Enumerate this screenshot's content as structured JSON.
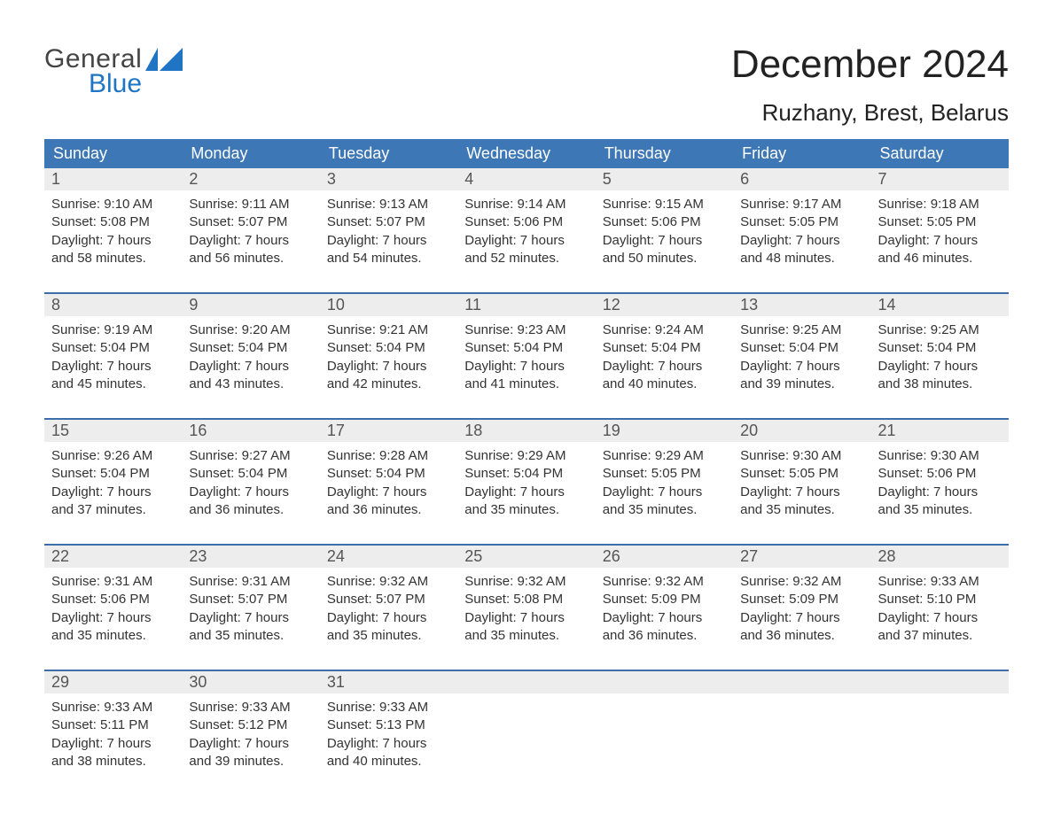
{
  "logo": {
    "line1": "General",
    "line2": "Blue"
  },
  "title": {
    "month": "December 2024",
    "location": "Ruzhany, Brest, Belarus"
  },
  "style": {
    "blue_header": "#3e77b5",
    "logo_blue": "#1f75c4",
    "daynum_gray": "#ededed",
    "text_dark": "#333333",
    "row_divider": "#3b6fa8",
    "background": "#ffffff",
    "font_family": "Arial, Helvetica, sans-serif",
    "title_fontsize_pt": 33,
    "location_fontsize_pt": 20,
    "weekday_fontsize_pt": 14,
    "cell_fontsize_pt": 11
  },
  "weekdays": [
    "Sunday",
    "Monday",
    "Tuesday",
    "Wednesday",
    "Thursday",
    "Friday",
    "Saturday"
  ],
  "labels": {
    "sunrise": "Sunrise:",
    "sunset": "Sunset:",
    "daylight": "Daylight:"
  },
  "weeks": [
    {
      "days": [
        {
          "n": "1",
          "sunrise": "9:10 AM",
          "sunset": "5:08 PM",
          "dl1": "Daylight: 7 hours",
          "dl2": "and 58 minutes."
        },
        {
          "n": "2",
          "sunrise": "9:11 AM",
          "sunset": "5:07 PM",
          "dl1": "Daylight: 7 hours",
          "dl2": "and 56 minutes."
        },
        {
          "n": "3",
          "sunrise": "9:13 AM",
          "sunset": "5:07 PM",
          "dl1": "Daylight: 7 hours",
          "dl2": "and 54 minutes."
        },
        {
          "n": "4",
          "sunrise": "9:14 AM",
          "sunset": "5:06 PM",
          "dl1": "Daylight: 7 hours",
          "dl2": "and 52 minutes."
        },
        {
          "n": "5",
          "sunrise": "9:15 AM",
          "sunset": "5:06 PM",
          "dl1": "Daylight: 7 hours",
          "dl2": "and 50 minutes."
        },
        {
          "n": "6",
          "sunrise": "9:17 AM",
          "sunset": "5:05 PM",
          "dl1": "Daylight: 7 hours",
          "dl2": "and 48 minutes."
        },
        {
          "n": "7",
          "sunrise": "9:18 AM",
          "sunset": "5:05 PM",
          "dl1": "Daylight: 7 hours",
          "dl2": "and 46 minutes."
        }
      ]
    },
    {
      "days": [
        {
          "n": "8",
          "sunrise": "9:19 AM",
          "sunset": "5:04 PM",
          "dl1": "Daylight: 7 hours",
          "dl2": "and 45 minutes."
        },
        {
          "n": "9",
          "sunrise": "9:20 AM",
          "sunset": "5:04 PM",
          "dl1": "Daylight: 7 hours",
          "dl2": "and 43 minutes."
        },
        {
          "n": "10",
          "sunrise": "9:21 AM",
          "sunset": "5:04 PM",
          "dl1": "Daylight: 7 hours",
          "dl2": "and 42 minutes."
        },
        {
          "n": "11",
          "sunrise": "9:23 AM",
          "sunset": "5:04 PM",
          "dl1": "Daylight: 7 hours",
          "dl2": "and 41 minutes."
        },
        {
          "n": "12",
          "sunrise": "9:24 AM",
          "sunset": "5:04 PM",
          "dl1": "Daylight: 7 hours",
          "dl2": "and 40 minutes."
        },
        {
          "n": "13",
          "sunrise": "9:25 AM",
          "sunset": "5:04 PM",
          "dl1": "Daylight: 7 hours",
          "dl2": "and 39 minutes."
        },
        {
          "n": "14",
          "sunrise": "9:25 AM",
          "sunset": "5:04 PM",
          "dl1": "Daylight: 7 hours",
          "dl2": "and 38 minutes."
        }
      ]
    },
    {
      "days": [
        {
          "n": "15",
          "sunrise": "9:26 AM",
          "sunset": "5:04 PM",
          "dl1": "Daylight: 7 hours",
          "dl2": "and 37 minutes."
        },
        {
          "n": "16",
          "sunrise": "9:27 AM",
          "sunset": "5:04 PM",
          "dl1": "Daylight: 7 hours",
          "dl2": "and 36 minutes."
        },
        {
          "n": "17",
          "sunrise": "9:28 AM",
          "sunset": "5:04 PM",
          "dl1": "Daylight: 7 hours",
          "dl2": "and 36 minutes."
        },
        {
          "n": "18",
          "sunrise": "9:29 AM",
          "sunset": "5:04 PM",
          "dl1": "Daylight: 7 hours",
          "dl2": "and 35 minutes."
        },
        {
          "n": "19",
          "sunrise": "9:29 AM",
          "sunset": "5:05 PM",
          "dl1": "Daylight: 7 hours",
          "dl2": "and 35 minutes."
        },
        {
          "n": "20",
          "sunrise": "9:30 AM",
          "sunset": "5:05 PM",
          "dl1": "Daylight: 7 hours",
          "dl2": "and 35 minutes."
        },
        {
          "n": "21",
          "sunrise": "9:30 AM",
          "sunset": "5:06 PM",
          "dl1": "Daylight: 7 hours",
          "dl2": "and 35 minutes."
        }
      ]
    },
    {
      "days": [
        {
          "n": "22",
          "sunrise": "9:31 AM",
          "sunset": "5:06 PM",
          "dl1": "Daylight: 7 hours",
          "dl2": "and 35 minutes."
        },
        {
          "n": "23",
          "sunrise": "9:31 AM",
          "sunset": "5:07 PM",
          "dl1": "Daylight: 7 hours",
          "dl2": "and 35 minutes."
        },
        {
          "n": "24",
          "sunrise": "9:32 AM",
          "sunset": "5:07 PM",
          "dl1": "Daylight: 7 hours",
          "dl2": "and 35 minutes."
        },
        {
          "n": "25",
          "sunrise": "9:32 AM",
          "sunset": "5:08 PM",
          "dl1": "Daylight: 7 hours",
          "dl2": "and 35 minutes."
        },
        {
          "n": "26",
          "sunrise": "9:32 AM",
          "sunset": "5:09 PM",
          "dl1": "Daylight: 7 hours",
          "dl2": "and 36 minutes."
        },
        {
          "n": "27",
          "sunrise": "9:32 AM",
          "sunset": "5:09 PM",
          "dl1": "Daylight: 7 hours",
          "dl2": "and 36 minutes."
        },
        {
          "n": "28",
          "sunrise": "9:33 AM",
          "sunset": "5:10 PM",
          "dl1": "Daylight: 7 hours",
          "dl2": "and 37 minutes."
        }
      ]
    },
    {
      "days": [
        {
          "n": "29",
          "sunrise": "9:33 AM",
          "sunset": "5:11 PM",
          "dl1": "Daylight: 7 hours",
          "dl2": "and 38 minutes."
        },
        {
          "n": "30",
          "sunrise": "9:33 AM",
          "sunset": "5:12 PM",
          "dl1": "Daylight: 7 hours",
          "dl2": "and 39 minutes."
        },
        {
          "n": "31",
          "sunrise": "9:33 AM",
          "sunset": "5:13 PM",
          "dl1": "Daylight: 7 hours",
          "dl2": "and 40 minutes."
        },
        {
          "empty": true
        },
        {
          "empty": true
        },
        {
          "empty": true
        },
        {
          "empty": true
        }
      ]
    }
  ]
}
